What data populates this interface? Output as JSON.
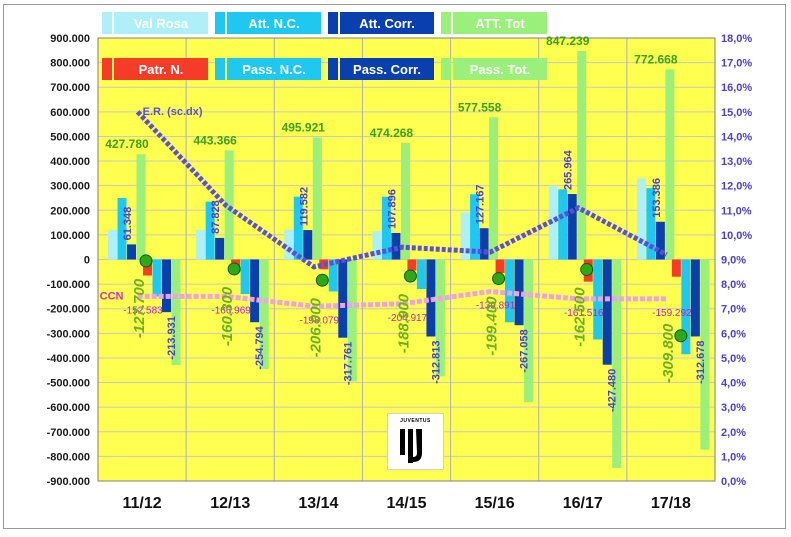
{
  "chart_data": {
    "type": "bar",
    "categories": [
      "11/12",
      "12/13",
      "13/14",
      "14/15",
      "15/16",
      "16/17",
      "17/18"
    ],
    "y_left": {
      "min": -900000,
      "max": 900000,
      "step": 100000,
      "ticks": [
        "900.000",
        "800.000",
        "700.000",
        "600.000",
        "500.000",
        "400.000",
        "300.000",
        "200.000",
        "100.000",
        "0",
        "-100.000",
        "-200.000",
        "-300.000",
        "-400.000",
        "-500.000",
        "-600.000",
        "-700.000",
        "-800.000",
        "-900.000"
      ]
    },
    "y_right": {
      "min": 0,
      "max": 18,
      "step": 1,
      "ticks": [
        "18,0%",
        "17,0%",
        "16,0%",
        "15,0%",
        "14,0%",
        "13,0%",
        "12,0%",
        "11,0%",
        "10,0%",
        "9,0%",
        "8,0%",
        "7,0%",
        "6,0%",
        "5,0%",
        "4,0%",
        "3,0%",
        "2,0%",
        "1,0%",
        "0,0%"
      ]
    },
    "series": [
      {
        "name": "Val Rosa",
        "color": "#aeeff8",
        "values": [
          120000,
          120000,
          120000,
          115000,
          190000,
          300000,
          330000
        ]
      },
      {
        "name": "Att. N.C.",
        "color": "#1ec8f0",
        "values": [
          250000,
          235000,
          255000,
          255000,
          265000,
          285000,
          290000
        ]
      },
      {
        "name": "Att. Corr.",
        "color": "#0a3fb0",
        "values": [
          61348,
          87828,
          119582,
          107896,
          127167,
          265964,
          153386
        ]
      },
      {
        "name": "ATT. Tot",
        "color": "#9af07a",
        "values": [
          427780,
          443366,
          495921,
          474268,
          577558,
          847239,
          772668
        ]
      },
      {
        "name": "Patr. N.",
        "color": "#f53c28",
        "values": [
          -65000,
          -50000,
          -40000,
          -45000,
          -55000,
          -90000,
          -70000
        ]
      },
      {
        "name": "Pass. N.C.",
        "color": "#1ec8f0",
        "values": [
          -150000,
          -140000,
          -130000,
          -120000,
          -255000,
          -325000,
          -385000
        ]
      },
      {
        "name": "Pass. Corr.",
        "color": "#0a3fb0",
        "values": [
          -213931,
          -254794,
          -317761,
          -312813,
          -267058,
          -427480,
          -312678
        ]
      },
      {
        "name": "Pass. Tot.",
        "color": "#9af07a",
        "values": [
          -429000,
          -445000,
          -495000,
          -475000,
          -580000,
          -847000,
          -773000
        ]
      }
    ],
    "labels": {
      "att_tot": [
        "427.780",
        "443.366",
        "495.921",
        "474.268",
        "577.558",
        "847.239",
        "772.668"
      ],
      "att_corr": [
        "61.348",
        "87.828",
        "119.582",
        "107.896",
        "127.167",
        "265.964",
        "153.386"
      ],
      "pass_corr": [
        "-213.931",
        "-254.794",
        "-317.761",
        "-312.813",
        "-267.058",
        "-427.480",
        "-312.678"
      ],
      "ccn": [
        "-152.583",
        "-166.969",
        "-198.079",
        "-204.917",
        "-139.891",
        "-161.516",
        "-159.292"
      ],
      "green_values": [
        "-127.700",
        "-160.300",
        "-206.000",
        "-188.900",
        "-199.400",
        "-162.500",
        "-309.800"
      ]
    },
    "ccn_line": {
      "name": "CCN",
      "values": [
        -127700,
        -160300,
        -206000,
        -188900,
        -199400,
        -162500,
        -309800
      ]
    },
    "er_line": {
      "name": "E.R. (sc.dx)",
      "color": "#5a50d8",
      "values": [
        15.0,
        11.2,
        8.7,
        9.5,
        9.3,
        11.1,
        9.2
      ]
    },
    "ccn_pink": {
      "values": [
        7.5,
        7.5,
        7.1,
        7.2,
        7.7,
        7.4,
        7.4
      ]
    },
    "grid": true,
    "plot_background": "#ffff50"
  },
  "logo": {
    "word": "JUVENTUS",
    "glyph": "J"
  }
}
